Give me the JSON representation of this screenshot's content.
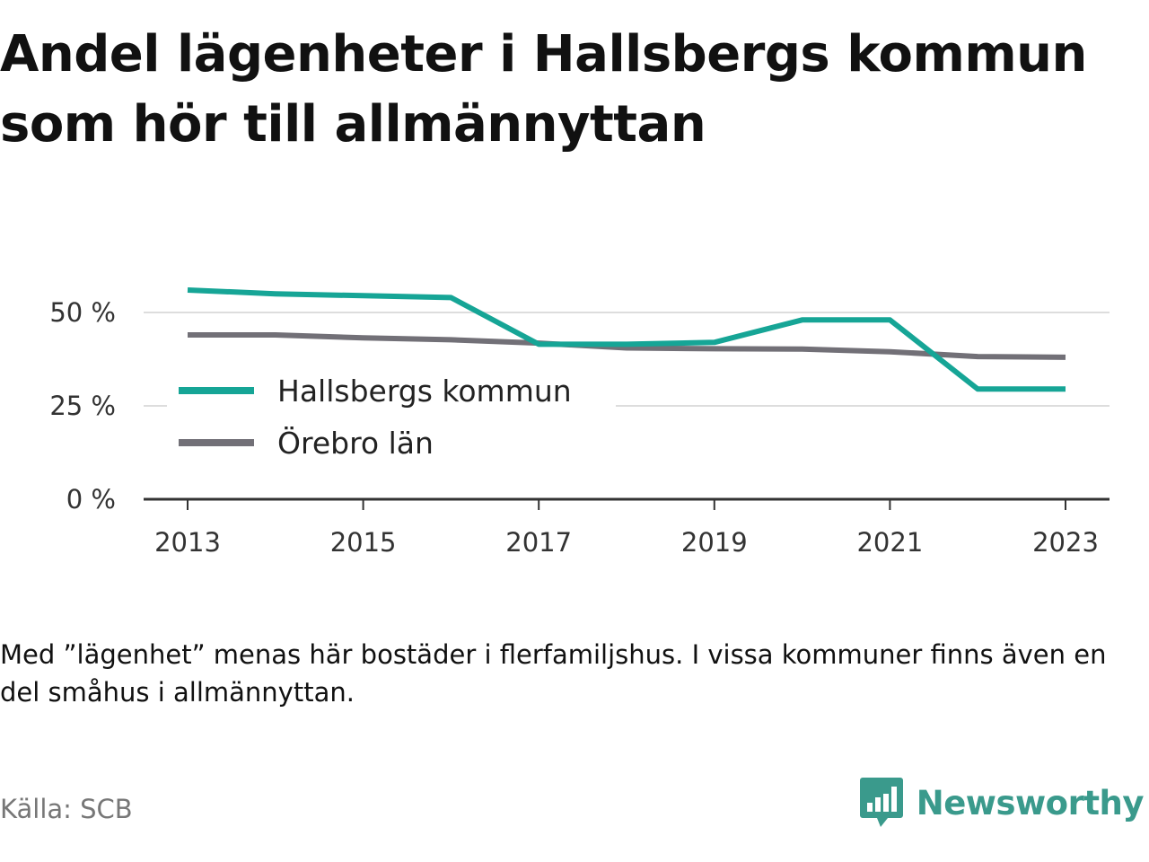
{
  "title": "Andel lägenheter i Hallsbergs kommun som hör till allmännyttan",
  "note": "Med ”lägenhet” menas här bostäder i flerfamiljshus. I vissa kommuner finns även en del småhus i allmännyttan.",
  "source": "Källa: SCB",
  "brand": {
    "name": "Newsworthy",
    "icon": "newsworthy-logo-icon",
    "color": "#3a9a8c"
  },
  "chart_data": {
    "type": "line",
    "title": "Andel lägenheter i Hallsbergs kommun som hör till allmännyttan",
    "xlabel": "",
    "ylabel": "",
    "x": [
      2013,
      2014,
      2015,
      2016,
      2017,
      2018,
      2019,
      2020,
      2021,
      2022,
      2023
    ],
    "x_ticks": [
      "2013",
      "2015",
      "2017",
      "2019",
      "2021",
      "2023"
    ],
    "y_ticks": [
      {
        "value": 0,
        "label": "0 %"
      },
      {
        "value": 25,
        "label": "25 %"
      },
      {
        "value": 50,
        "label": "50 %"
      }
    ],
    "ylim": [
      0,
      60
    ],
    "grid": true,
    "legend_position": "middle-left",
    "series": [
      {
        "name": "Hallsbergs kommun",
        "color": "#16a596",
        "values": [
          56,
          55,
          54.5,
          54,
          41.5,
          41.5,
          42,
          48,
          48,
          29.5,
          29.5
        ]
      },
      {
        "name": "Örebro län",
        "color": "#727077",
        "values": [
          44,
          44,
          43.2,
          42.7,
          41.8,
          40.5,
          40.3,
          40.2,
          39.5,
          38.2,
          38
        ]
      }
    ]
  }
}
